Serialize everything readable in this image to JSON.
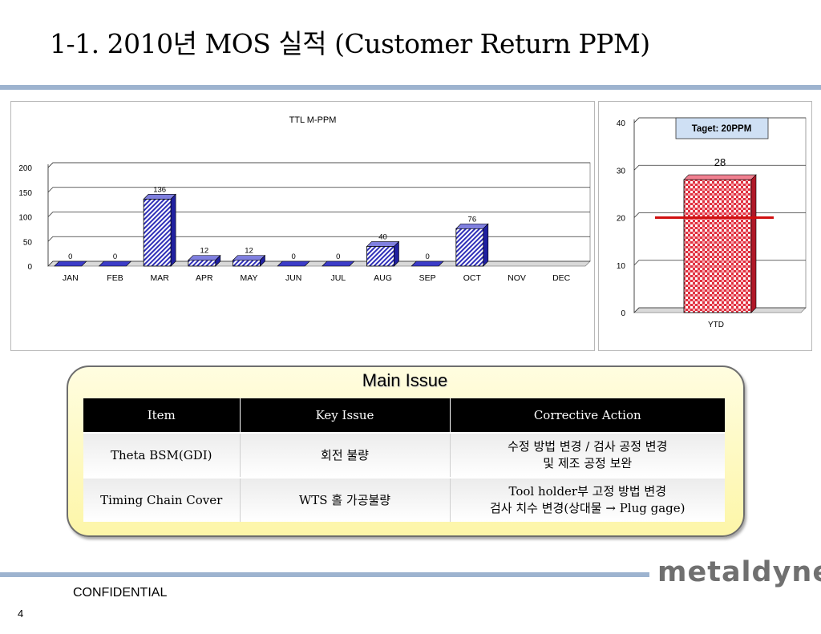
{
  "slide": {
    "title": "1-1. 2010년 MOS 실적 (Customer Return PPM)",
    "footer_label": "CONFIDENTIAL",
    "page_number": "4",
    "logo_text": "metaldyne"
  },
  "chart_data": [
    {
      "type": "bar",
      "title": "TTL M-PPM",
      "xlabel": "",
      "ylabel": "",
      "categories": [
        "JAN",
        "FEB",
        "MAR",
        "APR",
        "MAY",
        "JUN",
        "JUL",
        "AUG",
        "SEP",
        "OCT",
        "NOV",
        "DEC"
      ],
      "values": [
        0,
        0,
        136,
        12,
        12,
        0,
        0,
        40,
        0,
        76,
        null,
        null
      ],
      "data_labels": [
        "0",
        "0",
        "136",
        "12",
        "12",
        "0",
        "0",
        "40",
        "0",
        "76",
        "",
        ""
      ],
      "ylim": [
        0,
        200
      ],
      "yticks": [
        "0",
        "50",
        "100",
        "150",
        "200"
      ],
      "grid": true,
      "color": "#3c3cc8"
    },
    {
      "type": "bar",
      "title": "",
      "categories": [
        "YTD"
      ],
      "values": [
        28
      ],
      "data_labels": [
        "28"
      ],
      "ylim": [
        0,
        40
      ],
      "yticks": [
        "0",
        "10",
        "20",
        "30",
        "40"
      ],
      "grid": true,
      "target": {
        "label": "Taget: 20PPM",
        "value": 20
      },
      "color": "#e03040",
      "target_color": "#d01010"
    }
  ],
  "main_issue": {
    "title": "Main Issue",
    "headers": [
      "Item",
      "Key Issue",
      "Corrective Action"
    ],
    "rows": [
      {
        "item": "Theta BSM(GDI)",
        "key_issue": "회전 불량",
        "action_line1": "수정 방법 변경 / 검사 공정 변경",
        "action_line2": "및 제조 공정 보완"
      },
      {
        "item": "Timing Chain Cover",
        "key_issue": "WTS 홀 가공불량",
        "action_line1": "Tool holder부 고정 방법 변경",
        "action_line2": "검사 치수 변경(상대물 → Plug gage)"
      }
    ]
  }
}
